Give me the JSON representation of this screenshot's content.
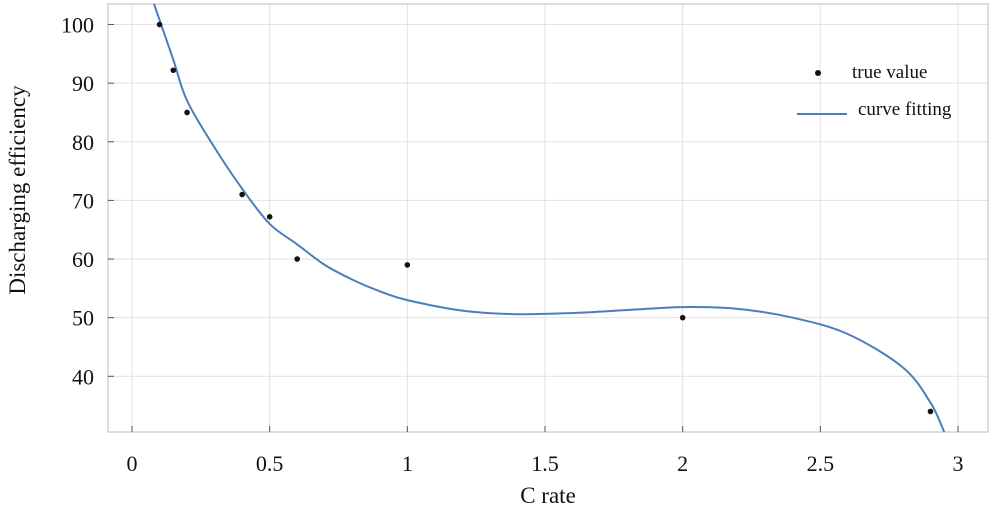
{
  "chart_data": {
    "type": "scatter",
    "title": "",
    "xlabel": "C rate",
    "ylabel": "Discharging efficiency",
    "xlim": [
      0,
      3
    ],
    "ylim": [
      30.5,
      103.5
    ],
    "xticks": [
      0,
      0.5,
      1,
      1.5,
      2,
      2.5,
      3
    ],
    "xtick_labels": [
      "0",
      "0.5",
      "1",
      "1.5",
      "2",
      "2.5",
      "3"
    ],
    "yticks": [
      40,
      50,
      60,
      70,
      80,
      90,
      100
    ],
    "ytick_labels": [
      "40",
      "50",
      "60",
      "70",
      "80",
      "90",
      "100"
    ],
    "grid": true,
    "legend_position": "top-right",
    "series": [
      {
        "name": "true value",
        "kind": "scatter",
        "color": "#111111",
        "points": [
          {
            "x": 0.1,
            "y": 100
          },
          {
            "x": 0.15,
            "y": 92.2
          },
          {
            "x": 0.2,
            "y": 85
          },
          {
            "x": 0.4,
            "y": 71
          },
          {
            "x": 0.5,
            "y": 67.2
          },
          {
            "x": 0.6,
            "y": 60
          },
          {
            "x": 1.0,
            "y": 59
          },
          {
            "x": 2.0,
            "y": 50
          },
          {
            "x": 2.9,
            "y": 34
          }
        ]
      },
      {
        "name": "curve fitting",
        "kind": "line",
        "color": "#4a7ebf",
        "points": [
          {
            "x": 0.08,
            "y": 103.5
          },
          {
            "x": 0.15,
            "y": 94
          },
          {
            "x": 0.2,
            "y": 87
          },
          {
            "x": 0.3,
            "y": 79
          },
          {
            "x": 0.4,
            "y": 72
          },
          {
            "x": 0.5,
            "y": 66
          },
          {
            "x": 0.6,
            "y": 62.5
          },
          {
            "x": 0.7,
            "y": 59
          },
          {
            "x": 0.8,
            "y": 56.5
          },
          {
            "x": 0.9,
            "y": 54.5
          },
          {
            "x": 1.0,
            "y": 53
          },
          {
            "x": 1.2,
            "y": 51.2
          },
          {
            "x": 1.4,
            "y": 50.6
          },
          {
            "x": 1.6,
            "y": 50.8
          },
          {
            "x": 1.8,
            "y": 51.3
          },
          {
            "x": 2.0,
            "y": 51.8
          },
          {
            "x": 2.2,
            "y": 51.5
          },
          {
            "x": 2.4,
            "y": 50
          },
          {
            "x": 2.6,
            "y": 47.2
          },
          {
            "x": 2.8,
            "y": 41.5
          },
          {
            "x": 2.9,
            "y": 35.5
          },
          {
            "x": 2.95,
            "y": 30.5
          }
        ]
      }
    ]
  }
}
